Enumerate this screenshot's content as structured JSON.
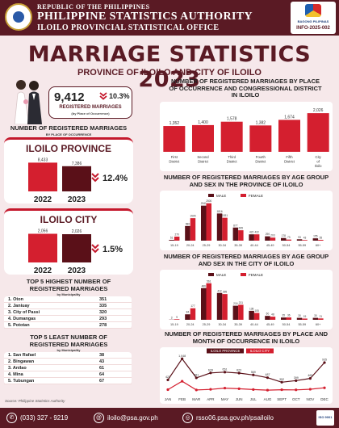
{
  "header": {
    "line1": "REPUBLIC OF THE PHILIPPINES",
    "line2": "PHILIPPINE STATISTICS AUTHORITY",
    "line3": "ILOILO PROVINCIAL STATISTICAL OFFICE",
    "badge_text": "BAGONG PILIPINAS",
    "info_code": "INFO-2025-002"
  },
  "title": "MARRIAGE STATISTICS 2023",
  "subtitle": "PROVINCE OF ILOILO AND CITY OF ILOILO",
  "total": {
    "value": "9,412",
    "change_icon": "double-chevron-down",
    "change": "10.3%",
    "label": "REGISTERED MARRIAGES",
    "sublabel": "(by Place of Occurrence)"
  },
  "place_section": {
    "title": "NUMBER OF REGISTERED MARRIAGES",
    "subtitle": "BY PLACE OF OCCURRENCE"
  },
  "colors": {
    "maroon": "#5a1a24",
    "red": "#d41f2f",
    "dark_red": "#5a1018",
    "bg": "#f6e8ea"
  },
  "chart_data": [
    {
      "type": "bar",
      "name": "province",
      "area": "ILOILO PROVINCE",
      "categories": [
        "2022",
        "2023"
      ],
      "values": [
        8433,
        7386
      ],
      "value_labels": [
        "8,433",
        "7,386"
      ],
      "change": "12.4%",
      "ylim": [
        0,
        9000
      ]
    },
    {
      "type": "bar",
      "name": "city",
      "area": "ILOILO CITY",
      "categories": [
        "2022",
        "2023"
      ],
      "values": [
        2056,
        2026
      ],
      "value_labels": [
        "2,056",
        "2,026"
      ],
      "change": "1.5%",
      "ylim": [
        0,
        2200
      ]
    },
    {
      "type": "bar",
      "name": "district",
      "title": "NUMBER OF REGISTERED MARRIAGES BY PLACE OF OCCURRENCE AND CONGRESSIONAL DISTRICT IN ILOILO",
      "categories": [
        "First District",
        "Second District",
        "Third District",
        "Fourth District",
        "Fifth District",
        "City of Iloilo"
      ],
      "values": [
        1352,
        1400,
        1578,
        1382,
        1674,
        2026
      ],
      "value_labels": [
        "1,352",
        "1,400",
        "1,578",
        "1,382",
        "1,674",
        "2,026"
      ],
      "ylim": [
        0,
        2200
      ]
    },
    {
      "type": "bar",
      "name": "age_province",
      "title": "NUMBER OF REGISTERED MARRIAGES BY AGE GROUP AND SEX IN THE PROVINCE OF ILOILO",
      "categories": [
        "15-19",
        "20-24",
        "25-29",
        "30-34",
        "35-39",
        "40-44",
        "45-49",
        "50-54",
        "55-59",
        "60+"
      ],
      "series": [
        {
          "name": "MALE",
          "values": [
            51,
            980,
            2341,
            1816,
            877,
            422,
            290,
            178,
            93,
            155
          ]
        },
        {
          "name": "FEMALE",
          "values": [
            270,
            1505,
            2500,
            1531,
            695,
            422,
            203,
            73,
            43,
            55
          ]
        }
      ],
      "ylim": [
        0,
        2700
      ]
    },
    {
      "type": "bar",
      "name": "age_city",
      "title": "NUMBER OF REGISTERED MARRIAGES BY AGE GROUP AND SEX IN THE CITY OF ILOILO",
      "categories": [
        "15-19",
        "20-24",
        "25-29",
        "30-34",
        "35-39",
        "40-44",
        "45-49",
        "50-54",
        "55-59",
        "60+"
      ],
      "series": [
        {
          "name": "MALE",
          "values": [
            3,
            84,
            486,
            412,
            216,
            138,
            60,
            35,
            30,
            30
          ]
        },
        {
          "name": "FEMALE",
          "values": [
            9,
            177,
            561,
            395,
            231,
            105,
            48,
            36,
            19,
            21
          ]
        }
      ],
      "ylim": [
        0,
        620
      ]
    },
    {
      "type": "line",
      "name": "monthly",
      "title": "NUMBER OF REGISTERED MARRIAGES BY PLACE AND MONTH OF OCCURRENCE IN ILOILO",
      "categories": [
        "JAN",
        "FEB",
        "MAR",
        "APR",
        "MAY",
        "JUN",
        "JUL",
        "AUG",
        "SEPT",
        "OCT",
        "NOV",
        "DEC"
      ],
      "series": [
        {
          "name": "ILOILO PROVINCE",
          "values": [
            421,
            1048,
            481,
            628,
            651,
            623,
            569,
            487,
            352,
            399,
            465,
            935
          ]
        },
        {
          "name": "ILOILO CITY",
          "values": [
            131,
            380,
            123,
            140,
            178,
            159,
            135,
            117,
            130,
            125,
            144,
            186
          ]
        }
      ],
      "value_labels": [
        "421",
        "1,048",
        "481",
        "628",
        "651",
        "623",
        "569",
        "487",
        "352",
        "399",
        "465",
        "935"
      ],
      "ylim": [
        0,
        1150
      ]
    }
  ],
  "top5_highest": {
    "title": "TOP 5 HIGHEST NUMBER OF REGISTERED MARRIAGES",
    "subtitle": "by Municipality",
    "rows": [
      {
        "rank": "1.",
        "name": "Oton",
        "value": "351"
      },
      {
        "rank": "2.",
        "name": "Janiuay",
        "value": "335"
      },
      {
        "rank": "3.",
        "name": "City of Passi",
        "value": "320"
      },
      {
        "rank": "4.",
        "name": "Dumangas",
        "value": "293"
      },
      {
        "rank": "5.",
        "name": "Pototan",
        "value": "278"
      }
    ]
  },
  "top5_least": {
    "title": "TOP 5 LEAST NUMBER OF REGISTERED MARRIAGES",
    "subtitle": "by Municipality",
    "rows": [
      {
        "rank": "1.",
        "name": "San Rafael",
        "value": "38"
      },
      {
        "rank": "2.",
        "name": "Bingawan",
        "value": "43"
      },
      {
        "rank": "3.",
        "name": "Anilao",
        "value": "61"
      },
      {
        "rank": "4.",
        "name": "Mina",
        "value": "64"
      },
      {
        "rank": "5.",
        "name": "Tubungan",
        "value": "67"
      }
    ]
  },
  "source": "Source: Philippine Statistics Authority",
  "footer": {
    "phone": "(033) 327 - 9219",
    "email": "iloilo@psa.gov.ph",
    "web": "rsso06.psa.gov.ph/psailoilo",
    "iso": "ISO 9001"
  }
}
